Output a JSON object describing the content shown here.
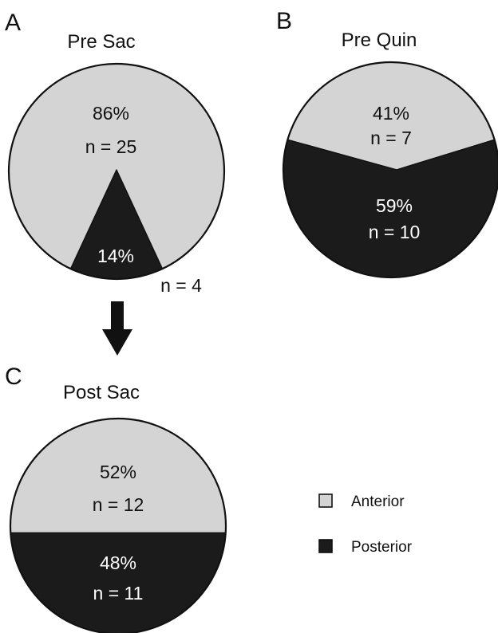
{
  "colors": {
    "anterior": "#d4d4d4",
    "posterior": "#1b1b1b",
    "outline": "#111111",
    "text_on_light": "#111111",
    "text_on_dark": "#ffffff"
  },
  "panels": [
    {
      "letter": "A"
    },
    {
      "letter": "B"
    },
    {
      "letter": "C"
    }
  ],
  "arrow": {
    "icon": "down-arrow-icon",
    "from_panel": "A",
    "to_panel": "C"
  },
  "legend": {
    "items": [
      {
        "label": "Anterior",
        "color": "#d4d4d4"
      },
      {
        "label": "Posterior",
        "color": "#1b1b1b"
      }
    ]
  },
  "chart_data": [
    {
      "type": "pie",
      "panel": "A",
      "title": "Pre Sac",
      "slices": [
        {
          "name": "Anterior",
          "value": 86,
          "percent_label": "86%",
          "n_label": "n = 25"
        },
        {
          "name": "Posterior",
          "value": 14,
          "percent_label": "14%",
          "n_label": "n = 4"
        }
      ]
    },
    {
      "type": "pie",
      "panel": "B",
      "title": "Pre Quin",
      "slices": [
        {
          "name": "Anterior",
          "value": 41,
          "percent_label": "41%",
          "n_label": "n = 7"
        },
        {
          "name": "Posterior",
          "value": 59,
          "percent_label": "59%",
          "n_label": "n = 10"
        }
      ]
    },
    {
      "type": "pie",
      "panel": "C",
      "title": "Post Sac",
      "slices": [
        {
          "name": "Anterior",
          "value": 52,
          "percent_label": "52%",
          "n_label": "n = 12"
        },
        {
          "name": "Posterior",
          "value": 48,
          "percent_label": "48%",
          "n_label": "n = 11"
        }
      ]
    }
  ]
}
